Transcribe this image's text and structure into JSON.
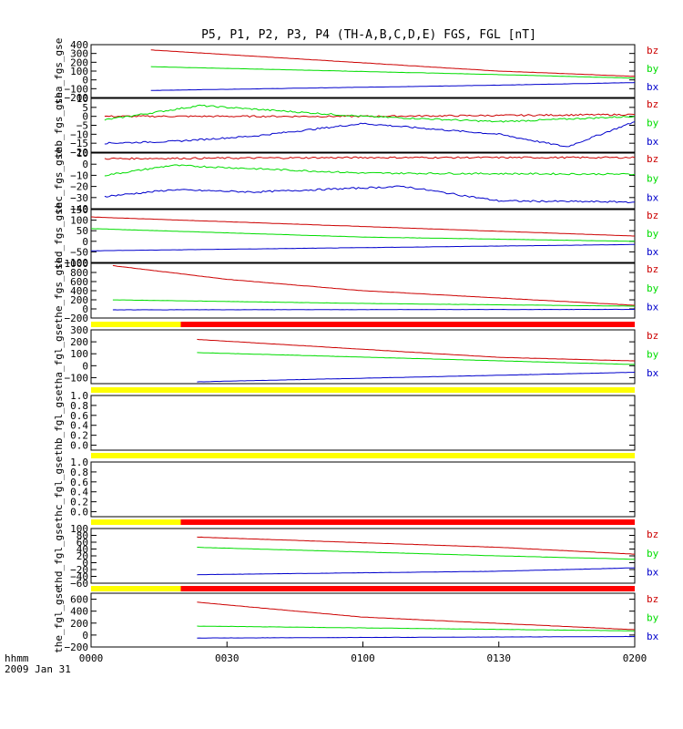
{
  "chart_data": {
    "type": "line",
    "title": "P5, P1, P2, P3, P4 (TH-A,B,C,D,E) FGS, FGL [nT]",
    "x_ticks": [
      "0000",
      "0030",
      "0100",
      "0130",
      "0200"
    ],
    "x_unit_label": "hhmm",
    "date_label": "2009 Jan 31",
    "component_labels": [
      "bz",
      "by",
      "bx"
    ],
    "colors": {
      "bz": "#cc0000",
      "by": "#00dd00",
      "bx": "#0000cc",
      "bar_yellow": "#ffff00",
      "bar_red": "#ff0000"
    },
    "panels": [
      {
        "ylabel": "tha_fgs_gse",
        "yticks": [
          "400",
          "300",
          "200",
          "100",
          "0",
          "−100",
          "−200"
        ],
        "ylim": [
          -200,
          400
        ],
        "series": [
          {
            "name": "bz",
            "x": [
              0.22,
              1.5,
              2.0
            ],
            "y": [
              340,
              100,
              40
            ]
          },
          {
            "name": "by",
            "x": [
              0.22,
              1.5,
              2.0
            ],
            "y": [
              150,
              60,
              20
            ]
          },
          {
            "name": "bx",
            "x": [
              0.22,
              1.5,
              2.0
            ],
            "y": [
              -120,
              -60,
              -30
            ]
          }
        ]
      },
      {
        "ylabel": "thb_fgs_gse",
        "yticks": [
          "10",
          "5",
          "0",
          "−5",
          "−10",
          "−15",
          "−20"
        ],
        "ylim": [
          -20,
          10
        ],
        "series": [
          {
            "name": "bz",
            "x": [
              0.05,
              1.0,
              2.0
            ],
            "y": [
              0,
              0,
              1
            ]
          },
          {
            "name": "by",
            "x": [
              0.05,
              0.4,
              1.0,
              1.5,
              2.0
            ],
            "y": [
              -2,
              6,
              0,
              -3,
              0
            ]
          },
          {
            "name": "bx",
            "x": [
              0.05,
              0.3,
              0.6,
              1.0,
              1.5,
              1.75,
              2.0
            ],
            "y": [
              -15,
              -14,
              -11,
              -4,
              -10,
              -17,
              -3
            ]
          }
        ]
      },
      {
        "ylabel": "thc_fgs_gse",
        "yticks": [
          "10",
          "0",
          "−10",
          "−20",
          "−30",
          "−40"
        ],
        "ylim": [
          -40,
          10
        ],
        "series": [
          {
            "name": "bz",
            "x": [
              0.05,
              1.0,
              2.0
            ],
            "y": [
              5,
              6,
              6
            ]
          },
          {
            "name": "by",
            "x": [
              0.05,
              0.3,
              1.0,
              2.0
            ],
            "y": [
              -10,
              -1,
              -8,
              -9
            ]
          },
          {
            "name": "bx",
            "x": [
              0.05,
              0.3,
              0.6,
              1.15,
              1.5,
              2.0
            ],
            "y": [
              -29,
              -23,
              -25,
              -20,
              -33,
              -34
            ]
          }
        ]
      },
      {
        "ylabel": "thd_fgs_gse",
        "yticks": [
          "150",
          "100",
          "50",
          "0",
          "−50",
          "−100"
        ],
        "ylim": [
          -100,
          150
        ],
        "series": [
          {
            "name": "bz",
            "x": [
              0.0,
              1.0,
              2.0
            ],
            "y": [
              115,
              70,
              25
            ]
          },
          {
            "name": "by",
            "x": [
              0.0,
              1.0,
              2.0
            ],
            "y": [
              60,
              20,
              0
            ]
          },
          {
            "name": "bx",
            "x": [
              0.0,
              1.0,
              2.0
            ],
            "y": [
              -45,
              -30,
              -15
            ]
          }
        ]
      },
      {
        "ylabel": "the_fgs_gse",
        "yticks": [
          "1000",
          "800",
          "600",
          "400",
          "200",
          "0",
          "−200"
        ],
        "ylim": [
          -200,
          1000
        ],
        "series": [
          {
            "name": "bz",
            "x": [
              0.08,
              0.5,
              1.0,
              2.0
            ],
            "y": [
              950,
              650,
              400,
              80
            ]
          },
          {
            "name": "by",
            "x": [
              0.08,
              1.0,
              2.0
            ],
            "y": [
              200,
              120,
              60
            ]
          },
          {
            "name": "bx",
            "x": [
              0.08,
              1.0,
              2.0
            ],
            "y": [
              -20,
              -15,
              -10
            ]
          }
        ]
      },
      {
        "ylabel": "tha_fgl_gse",
        "yticks": [
          "300",
          "200",
          "100",
          "0",
          "−100"
        ],
        "ylim": [
          -150,
          300
        ],
        "bar": [
          [
            "yellow",
            0.0,
            0.33
          ],
          [
            "red",
            0.33,
            2.0
          ]
        ],
        "series": [
          {
            "name": "bz",
            "x": [
              0.39,
              1.5,
              2.0
            ],
            "y": [
              220,
              70,
              40
            ]
          },
          {
            "name": "by",
            "x": [
              0.39,
              2.0
            ],
            "y": [
              110,
              10
            ]
          },
          {
            "name": "bx",
            "x": [
              0.39,
              2.0
            ],
            "y": [
              -135,
              -55
            ]
          }
        ]
      },
      {
        "ylabel": "thb_fgl_gse",
        "yticks": [
          "1.0",
          "0.8",
          "0.6",
          "0.4",
          "0.2",
          "0.0"
        ],
        "ylim": [
          -0.1,
          1.0
        ],
        "bar": [
          [
            "yellow",
            0.0,
            2.0
          ]
        ],
        "series": []
      },
      {
        "ylabel": "thc_fgl_gse",
        "yticks": [
          "1.0",
          "0.8",
          "0.6",
          "0.4",
          "0.2",
          "0.0"
        ],
        "ylim": [
          -0.1,
          1.0
        ],
        "bar": [
          [
            "yellow",
            0.0,
            2.0
          ]
        ],
        "series": []
      },
      {
        "ylabel": "thd_fgl_gse",
        "yticks": [
          "100",
          "80",
          "60",
          "40",
          "20",
          "0",
          "−20",
          "−40",
          "−60"
        ],
        "ylim": [
          -60,
          100
        ],
        "bar": [
          [
            "yellow",
            0.0,
            0.33
          ],
          [
            "red",
            0.33,
            2.0
          ]
        ],
        "series": [
          {
            "name": "bz",
            "x": [
              0.39,
              1.5,
              2.0
            ],
            "y": [
              75,
              45,
              25
            ]
          },
          {
            "name": "by",
            "x": [
              0.39,
              1.5,
              2.0
            ],
            "y": [
              45,
              20,
              10
            ]
          },
          {
            "name": "bx",
            "x": [
              0.39,
              1.5,
              2.0
            ],
            "y": [
              -35,
              -25,
              -15
            ]
          }
        ]
      },
      {
        "ylabel": "the_fgl_gse",
        "yticks": [
          "600",
          "400",
          "200",
          "0",
          "−200"
        ],
        "ylim": [
          -200,
          700
        ],
        "bar": [
          [
            "yellow",
            0.0,
            0.33
          ],
          [
            "red",
            0.33,
            2.0
          ]
        ],
        "series": [
          {
            "name": "bz",
            "x": [
              0.39,
              1.0,
              2.0
            ],
            "y": [
              550,
              300,
              90
            ]
          },
          {
            "name": "by",
            "x": [
              0.39,
              2.0
            ],
            "y": [
              150,
              70
            ]
          },
          {
            "name": "bx",
            "x": [
              0.39,
              2.0
            ],
            "y": [
              -50,
              -25
            ]
          }
        ]
      }
    ]
  }
}
